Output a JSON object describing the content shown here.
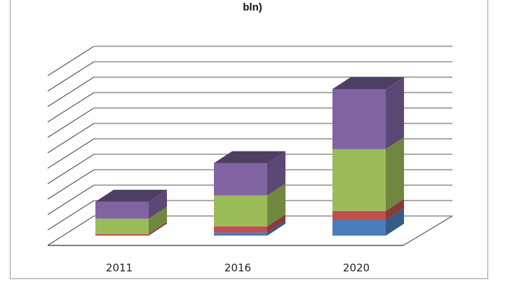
{
  "chart_data": {
    "type": "bar",
    "stacked": true,
    "three_d": true,
    "title": "bln)",
    "categories": [
      "2011",
      "2016",
      "2020"
    ],
    "series": [
      {
        "values": [
          0,
          2,
          10
        ],
        "color": "#4a7ebb"
      },
      {
        "values": [
          1,
          4,
          6
        ],
        "color": "#c0504d"
      },
      {
        "values": [
          10,
          20,
          40
        ],
        "color": "#9bbb59"
      },
      {
        "values": [
          11,
          21,
          39
        ],
        "color": "#8064a2"
      }
    ],
    "ylim": [
      0,
      110
    ],
    "grid": true,
    "legend": "none"
  }
}
